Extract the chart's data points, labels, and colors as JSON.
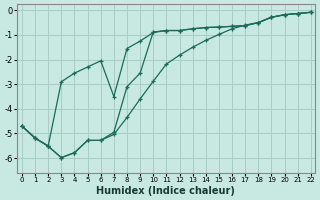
{
  "xlabel": "Humidex (Indice chaleur)",
  "bg_color": "#c8e8e2",
  "grid_color": "#aaccc6",
  "line_color": "#1a6b5a",
  "xlim_min": -0.4,
  "xlim_max": 22.3,
  "ylim_min": -6.6,
  "ylim_max": 0.25,
  "xticks": [
    0,
    1,
    2,
    3,
    4,
    5,
    6,
    7,
    8,
    9,
    10,
    11,
    12,
    13,
    14,
    15,
    16,
    17,
    18,
    19,
    20,
    21,
    22
  ],
  "yticks": [
    0,
    -1,
    -2,
    -3,
    -4,
    -5,
    -6
  ],
  "curve1_x": [
    0,
    1,
    2,
    3,
    4,
    5,
    6,
    7,
    8,
    9,
    10,
    11,
    12,
    13,
    14,
    15,
    16,
    17,
    18,
    19,
    20,
    21,
    22
  ],
  "curve1_y": [
    -4.7,
    -5.2,
    -5.5,
    -2.9,
    -2.55,
    -2.3,
    -2.05,
    -3.5,
    -1.55,
    -1.25,
    -0.9,
    -0.82,
    -0.82,
    -0.75,
    -0.7,
    -0.68,
    -0.65,
    -0.62,
    -0.5,
    -0.28,
    -0.18,
    -0.13,
    -0.08
  ],
  "curve2_x": [
    0,
    1,
    2,
    3,
    4,
    5,
    6,
    7,
    8,
    9,
    10,
    11,
    12,
    13,
    14,
    15,
    16,
    17,
    18,
    19,
    20,
    21,
    22
  ],
  "curve2_y": [
    -4.7,
    -5.18,
    -5.52,
    -5.98,
    -5.78,
    -5.28,
    -5.28,
    -4.95,
    -3.1,
    -2.55,
    -0.88,
    -0.82,
    -0.82,
    -0.75,
    -0.7,
    -0.68,
    -0.65,
    -0.62,
    -0.5,
    -0.28,
    -0.18,
    -0.13,
    -0.08
  ],
  "curve3_x": [
    0,
    1,
    2,
    3,
    4,
    5,
    6,
    7,
    8,
    9,
    10,
    11,
    12,
    13,
    14,
    15,
    16,
    17,
    18,
    19,
    20,
    21,
    22
  ],
  "curve3_y": [
    -4.7,
    -5.18,
    -5.52,
    -5.98,
    -5.78,
    -5.28,
    -5.28,
    -5.04,
    -4.35,
    -3.6,
    -2.88,
    -2.18,
    -1.82,
    -1.5,
    -1.22,
    -0.98,
    -0.75,
    -0.6,
    -0.5,
    -0.28,
    -0.18,
    -0.13,
    -0.08
  ]
}
